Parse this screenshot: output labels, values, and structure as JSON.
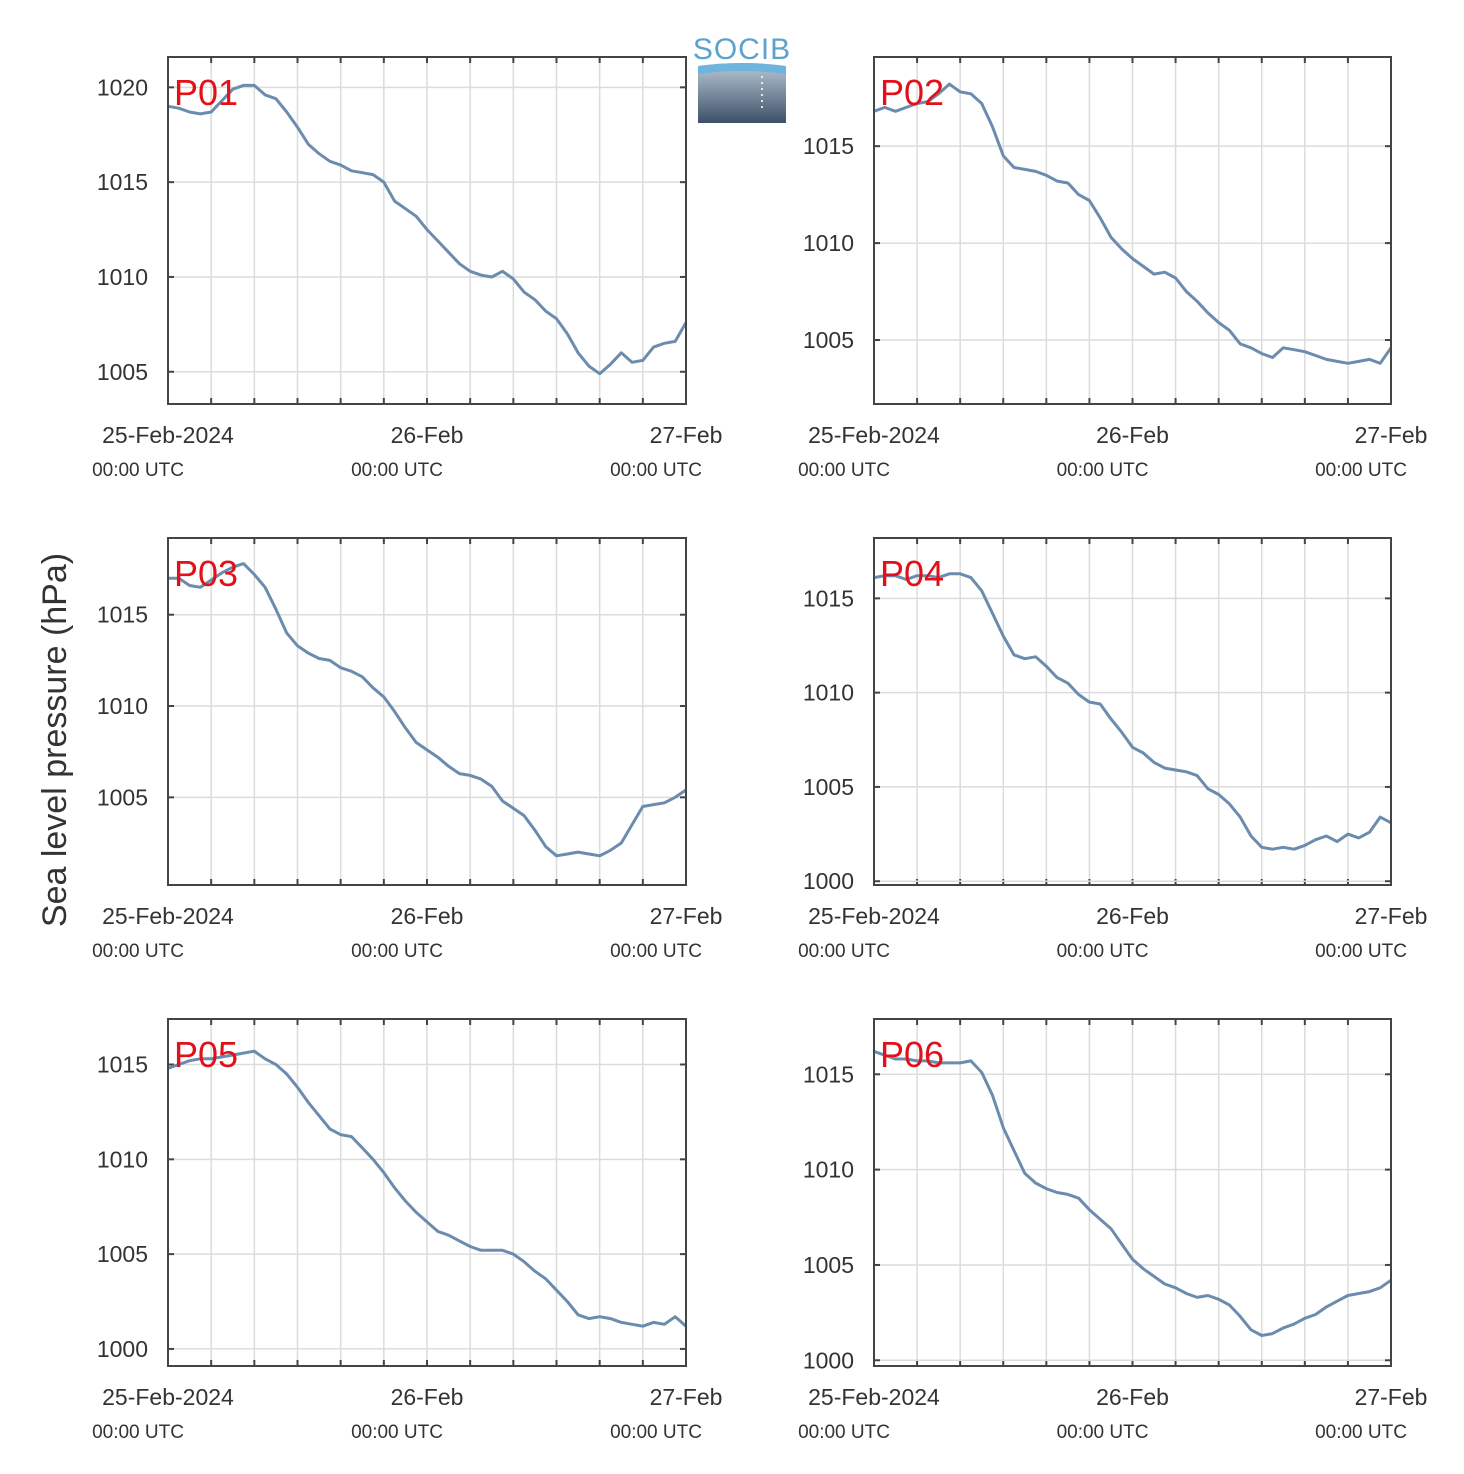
{
  "figure": {
    "ylabel": "Sea level pressure (hPa)",
    "logo_text": "SOCIB",
    "x_tick_main": [
      "25-Feb-2024",
      "26-Feb",
      "27-Feb"
    ],
    "x_tick_sub": [
      "00:00 UTC",
      "00:00 UTC",
      "00:00 UTC"
    ],
    "colors": {
      "line": "#6b8cae",
      "panel_label": "#e3101a",
      "grid": "#dcdcdc",
      "axis": "#444444",
      "logo_top": "#6fb4dc",
      "logo_bottom": "#3c5066"
    }
  },
  "chart_data": [
    {
      "type": "line",
      "panel_label": "P01",
      "ylabel": "Sea level pressure (hPa)",
      "xlim": [
        0,
        48
      ],
      "ylim": [
        1003.3,
        1021.6
      ],
      "yticks": [
        1005,
        1010,
        1015,
        1020
      ],
      "x_tick_labels": [
        "25-Feb-2024 00:00 UTC",
        "26-Feb 00:00 UTC",
        "27-Feb 00:00 UTC"
      ],
      "grid": true,
      "series_name": "",
      "x": [
        0,
        1,
        2,
        3,
        4,
        5,
        6,
        7,
        8,
        9,
        10,
        11,
        12,
        13,
        14,
        15,
        16,
        17,
        18,
        19,
        20,
        21,
        22,
        23,
        24,
        25,
        26,
        27,
        28,
        29,
        30,
        31,
        32,
        33,
        34,
        35,
        36,
        37,
        38,
        39,
        40,
        41,
        42,
        43,
        44,
        45,
        46,
        47,
        48
      ],
      "y": [
        1019.0,
        1018.9,
        1018.7,
        1018.6,
        1018.7,
        1019.3,
        1019.9,
        1020.1,
        1020.1,
        1019.6,
        1019.4,
        1018.7,
        1017.9,
        1017.0,
        1016.5,
        1016.1,
        1015.9,
        1015.6,
        1015.5,
        1015.4,
        1015.0,
        1014.0,
        1013.6,
        1013.2,
        1012.5,
        1011.9,
        1011.3,
        1010.7,
        1010.3,
        1010.1,
        1010.0,
        1010.3,
        1009.9,
        1009.2,
        1008.8,
        1008.2,
        1007.8,
        1007.0,
        1006.0,
        1005.3,
        1004.9,
        1005.4,
        1006.0,
        1005.5,
        1005.6,
        1006.3,
        1006.5,
        1006.6,
        1007.6
      ]
    },
    {
      "type": "line",
      "panel_label": "P02",
      "ylabel": "Sea level pressure (hPa)",
      "xlim": [
        0,
        48
      ],
      "ylim": [
        1001.7,
        1019.6
      ],
      "yticks": [
        1005,
        1010,
        1015
      ],
      "x_tick_labels": [
        "25-Feb-2024 00:00 UTC",
        "26-Feb 00:00 UTC",
        "27-Feb 00:00 UTC"
      ],
      "grid": true,
      "series_name": "",
      "x": [
        0,
        1,
        2,
        3,
        4,
        5,
        6,
        7,
        8,
        9,
        10,
        11,
        12,
        13,
        14,
        15,
        16,
        17,
        18,
        19,
        20,
        21,
        22,
        23,
        24,
        25,
        26,
        27,
        28,
        29,
        30,
        31,
        32,
        33,
        34,
        35,
        36,
        37,
        38,
        39,
        40,
        41,
        42,
        43,
        44,
        45,
        46,
        47,
        48
      ],
      "y": [
        1016.8,
        1017.0,
        1016.8,
        1017.0,
        1017.2,
        1017.3,
        1017.7,
        1018.2,
        1017.8,
        1017.7,
        1017.2,
        1016.0,
        1014.5,
        1013.9,
        1013.8,
        1013.7,
        1013.5,
        1013.2,
        1013.1,
        1012.5,
        1012.2,
        1011.3,
        1010.3,
        1009.7,
        1009.2,
        1008.8,
        1008.4,
        1008.5,
        1008.2,
        1007.5,
        1007.0,
        1006.4,
        1005.9,
        1005.5,
        1004.8,
        1004.6,
        1004.3,
        1004.1,
        1004.6,
        1004.5,
        1004.4,
        1004.2,
        1004.0,
        1003.9,
        1003.8,
        1003.9,
        1004.0,
        1003.8,
        1004.6
      ]
    },
    {
      "type": "line",
      "panel_label": "P03",
      "ylabel": "Sea level pressure (hPa)",
      "xlim": [
        0,
        48
      ],
      "ylim": [
        1000.2,
        1019.2
      ],
      "yticks": [
        1005,
        1010,
        1015
      ],
      "x_tick_labels": [
        "25-Feb-2024 00:00 UTC",
        "26-Feb 00:00 UTC",
        "27-Feb 00:00 UTC"
      ],
      "grid": true,
      "series_name": "",
      "x": [
        0,
        1,
        2,
        3,
        4,
        5,
        6,
        7,
        8,
        9,
        10,
        11,
        12,
        13,
        14,
        15,
        16,
        17,
        18,
        19,
        20,
        21,
        22,
        23,
        24,
        25,
        26,
        27,
        28,
        29,
        30,
        31,
        32,
        33,
        34,
        35,
        36,
        37,
        38,
        39,
        40,
        41,
        42,
        43,
        44,
        45,
        46,
        47,
        48
      ],
      "y": [
        1017.0,
        1017.0,
        1016.6,
        1016.5,
        1016.9,
        1017.3,
        1017.6,
        1017.8,
        1017.2,
        1016.5,
        1015.3,
        1014.0,
        1013.3,
        1012.9,
        1012.6,
        1012.5,
        1012.1,
        1011.9,
        1011.6,
        1011.0,
        1010.5,
        1009.7,
        1008.8,
        1008.0,
        1007.6,
        1007.2,
        1006.7,
        1006.3,
        1006.2,
        1006.0,
        1005.6,
        1004.8,
        1004.4,
        1004.0,
        1003.2,
        1002.3,
        1001.8,
        1001.9,
        1002.0,
        1001.9,
        1001.8,
        1002.1,
        1002.5,
        1003.5,
        1004.5,
        1004.6,
        1004.7,
        1005.0,
        1005.4
      ]
    },
    {
      "type": "line",
      "panel_label": "P04",
      "ylabel": "Sea level pressure (hPa)",
      "xlim": [
        0,
        48
      ],
      "ylim": [
        999.8,
        1018.2
      ],
      "yticks": [
        1000,
        1005,
        1010,
        1015
      ],
      "x_tick_labels": [
        "25-Feb-2024 00:00 UTC",
        "26-Feb 00:00 UTC",
        "27-Feb 00:00 UTC"
      ],
      "grid": true,
      "series_name": "",
      "x": [
        0,
        1,
        2,
        3,
        4,
        5,
        6,
        7,
        8,
        9,
        10,
        11,
        12,
        13,
        14,
        15,
        16,
        17,
        18,
        19,
        20,
        21,
        22,
        23,
        24,
        25,
        26,
        27,
        28,
        29,
        30,
        31,
        32,
        33,
        34,
        35,
        36,
        37,
        38,
        39,
        40,
        41,
        42,
        43,
        44,
        45,
        46,
        47,
        48
      ],
      "y": [
        1016.1,
        1016.2,
        1016.2,
        1016.0,
        1016.2,
        1016.2,
        1016.1,
        1016.3,
        1016.3,
        1016.1,
        1015.4,
        1014.2,
        1013.0,
        1012.0,
        1011.8,
        1011.9,
        1011.4,
        1010.8,
        1010.5,
        1009.9,
        1009.5,
        1009.4,
        1008.6,
        1007.9,
        1007.1,
        1006.8,
        1006.3,
        1006.0,
        1005.9,
        1005.8,
        1005.6,
        1004.9,
        1004.6,
        1004.1,
        1003.4,
        1002.4,
        1001.8,
        1001.7,
        1001.8,
        1001.7,
        1001.9,
        1002.2,
        1002.4,
        1002.1,
        1002.5,
        1002.3,
        1002.6,
        1003.4,
        1003.1
      ]
    },
    {
      "type": "line",
      "panel_label": "P05",
      "ylabel": "Sea level pressure (hPa)",
      "xlim": [
        0,
        48
      ],
      "ylim": [
        999.1,
        1017.4
      ],
      "yticks": [
        1000,
        1005,
        1010,
        1015
      ],
      "x_tick_labels": [
        "25-Feb-2024 00:00 UTC",
        "26-Feb 00:00 UTC",
        "27-Feb 00:00 UTC"
      ],
      "grid": true,
      "series_name": "",
      "x": [
        0,
        1,
        2,
        3,
        4,
        5,
        6,
        7,
        8,
        9,
        10,
        11,
        12,
        13,
        14,
        15,
        16,
        17,
        18,
        19,
        20,
        21,
        22,
        23,
        24,
        25,
        26,
        27,
        28,
        29,
        30,
        31,
        32,
        33,
        34,
        35,
        36,
        37,
        38,
        39,
        40,
        41,
        42,
        43,
        44,
        45,
        46,
        47,
        48
      ],
      "y": [
        1014.8,
        1015.0,
        1015.2,
        1015.3,
        1015.3,
        1015.4,
        1015.5,
        1015.6,
        1015.7,
        1015.3,
        1015.0,
        1014.5,
        1013.8,
        1013.0,
        1012.3,
        1011.6,
        1011.3,
        1011.2,
        1010.6,
        1010.0,
        1009.3,
        1008.5,
        1007.8,
        1007.2,
        1006.7,
        1006.2,
        1006.0,
        1005.7,
        1005.4,
        1005.2,
        1005.2,
        1005.2,
        1005.0,
        1004.6,
        1004.1,
        1003.7,
        1003.1,
        1002.5,
        1001.8,
        1001.6,
        1001.7,
        1001.6,
        1001.4,
        1001.3,
        1001.2,
        1001.4,
        1001.3,
        1001.7,
        1001.2
      ]
    },
    {
      "type": "line",
      "panel_label": "P06",
      "ylabel": "Sea level pressure (hPa)",
      "xlim": [
        0,
        48
      ],
      "ylim": [
        999.7,
        1017.9
      ],
      "yticks": [
        1000,
        1005,
        1010,
        1015
      ],
      "x_tick_labels": [
        "25-Feb-2024 00:00 UTC",
        "26-Feb 00:00 UTC",
        "27-Feb 00:00 UTC"
      ],
      "grid": true,
      "series_name": "",
      "x": [
        0,
        1,
        2,
        3,
        4,
        5,
        6,
        7,
        8,
        9,
        10,
        11,
        12,
        13,
        14,
        15,
        16,
        17,
        18,
        19,
        20,
        21,
        22,
        23,
        24,
        25,
        26,
        27,
        28,
        29,
        30,
        31,
        32,
        33,
        34,
        35,
        36,
        37,
        38,
        39,
        40,
        41,
        42,
        43,
        44,
        45,
        46,
        47,
        48
      ],
      "y": [
        1016.2,
        1016.0,
        1015.8,
        1015.8,
        1015.7,
        1015.7,
        1015.6,
        1015.6,
        1015.6,
        1015.7,
        1015.1,
        1013.9,
        1012.2,
        1011.0,
        1009.8,
        1009.3,
        1009.0,
        1008.8,
        1008.7,
        1008.5,
        1007.9,
        1007.4,
        1006.9,
        1006.1,
        1005.3,
        1004.8,
        1004.4,
        1004.0,
        1003.8,
        1003.5,
        1003.3,
        1003.4,
        1003.2,
        1002.9,
        1002.3,
        1001.6,
        1001.3,
        1001.4,
        1001.7,
        1001.9,
        1002.2,
        1002.4,
        1002.8,
        1003.1,
        1003.4,
        1003.5,
        1003.6,
        1003.8,
        1004.2
      ]
    }
  ]
}
